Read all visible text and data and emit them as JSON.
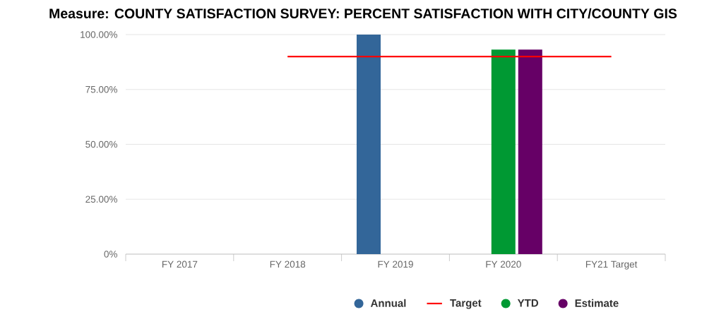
{
  "chart_data": {
    "type": "bar",
    "title": "Measure: COUNTY SATISFACTION SURVEY: PERCENT SATISFACTION WITH CITY/COUNTY GIS",
    "categories": [
      "FY 2017",
      "FY 2018",
      "FY 2019",
      "FY 2020",
      "FY21 Target"
    ],
    "series": [
      {
        "name": "Annual",
        "color": "#336699",
        "values": [
          null,
          null,
          100,
          null,
          null
        ]
      },
      {
        "name": "Target",
        "type": "line",
        "color": "#ff0000",
        "values": [
          null,
          90,
          90,
          90,
          90
        ]
      },
      {
        "name": "YTD",
        "color": "#009933",
        "values": [
          null,
          null,
          null,
          93.2,
          null
        ]
      },
      {
        "name": "Estimate",
        "color": "#660066",
        "values": [
          null,
          null,
          null,
          93.2,
          null
        ]
      }
    ],
    "ylim": [
      0,
      100
    ],
    "yticks": [
      {
        "value": 0,
        "label": "0%"
      },
      {
        "value": 25,
        "label": "25.00%"
      },
      {
        "value": 50,
        "label": "50.00%"
      },
      {
        "value": 75,
        "label": "75.00%"
      },
      {
        "value": 100,
        "label": "100.00%"
      }
    ],
    "grid": "y",
    "legend": "bottom"
  }
}
